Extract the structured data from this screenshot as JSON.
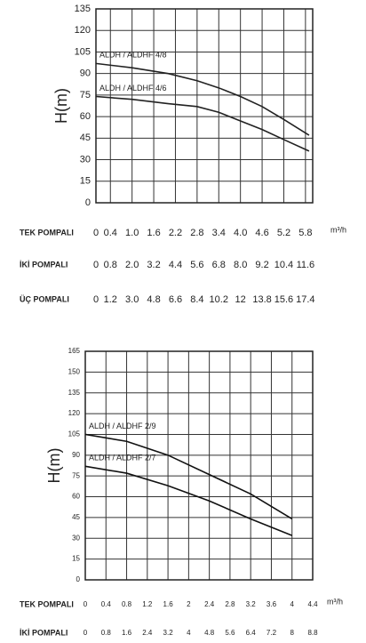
{
  "chart_data": [
    {
      "type": "line",
      "y_label": "H(m)",
      "ylim": [
        0,
        135
      ],
      "yticks": [
        0,
        15,
        30,
        45,
        60,
        75,
        90,
        105,
        120,
        135
      ],
      "grid": true,
      "x_unit": "m³/h",
      "x_axes": [
        {
          "label": "TEK POMPALI",
          "xlim": [
            0,
            6
          ],
          "xticks": [
            0,
            0.4,
            {
              "value": 1,
              "label": "1.0"
            },
            1.6,
            2.2,
            2.8,
            3.4,
            {
              "value": 4,
              "label": "4.0"
            },
            4.6,
            5.2,
            5.8
          ]
        },
        {
          "label": "İKİ POMPALI",
          "xlim": [
            0,
            12
          ],
          "xticks": [
            0,
            0.8,
            {
              "value": 2,
              "label": "2.0"
            },
            3.2,
            4.4,
            5.6,
            6.8,
            {
              "value": 8,
              "label": "8.0"
            },
            9.2,
            10.4,
            11.6
          ]
        },
        {
          "label": "ÜÇ POMPALI",
          "xlim": [
            0,
            18
          ],
          "xticks": [
            0,
            1.2,
            {
              "value": 3,
              "label": "3.0"
            },
            4.8,
            6.6,
            8.4,
            10.2,
            12,
            13.8,
            15.6,
            17.4
          ]
        }
      ],
      "series": [
        {
          "name": "ALDH / ALDHF 4/8",
          "color": "#222222",
          "x": [
            0,
            1,
            2,
            2.8,
            3.4,
            4,
            4.6,
            5.2,
            5.9
          ],
          "values": [
            97,
            94,
            90,
            85,
            80,
            74,
            67,
            58,
            47
          ]
        },
        {
          "name": "ALDH / ALDHF 4/6",
          "color": "#222222",
          "x": [
            0,
            1,
            2,
            2.8,
            3.4,
            4,
            4.6,
            5.2,
            5.9
          ],
          "values": [
            74,
            72,
            69,
            67,
            63,
            57,
            51,
            44,
            36
          ]
        }
      ]
    },
    {
      "type": "line",
      "y_label": "H(m)",
      "ylim": [
        0,
        165
      ],
      "yticks": [
        0,
        15,
        30,
        45,
        60,
        75,
        90,
        105,
        120,
        135,
        150,
        165
      ],
      "grid": true,
      "x_unit": "m³/h",
      "x_axes": [
        {
          "label": "TEK POMPALI",
          "xlim": [
            0,
            4.4
          ],
          "xticks": [
            0,
            0.4,
            0.8,
            1.2,
            1.6,
            2,
            2.4,
            2.8,
            3.2,
            3.6,
            4,
            4.4
          ]
        },
        {
          "label": "İKİ POMPALI",
          "xlim": [
            0,
            8.8
          ],
          "xticks": [
            0,
            0.8,
            1.6,
            2.4,
            3.2,
            4,
            4.8,
            5.6,
            6.4,
            7.2,
            8,
            8.8
          ]
        }
      ],
      "series": [
        {
          "name": "ALDH / ALDHF 2/9",
          "color": "#111111",
          "x": [
            0,
            0.8,
            1.6,
            2.4,
            3.2,
            4
          ],
          "values": [
            105,
            100,
            90,
            76,
            62,
            44
          ]
        },
        {
          "name": "ALDH / ALDHF 2/7",
          "color": "#111111",
          "x": [
            0,
            0.8,
            1.6,
            2.4,
            3.2,
            4
          ],
          "values": [
            82,
            77,
            68,
            57,
            44,
            32
          ]
        }
      ]
    }
  ]
}
